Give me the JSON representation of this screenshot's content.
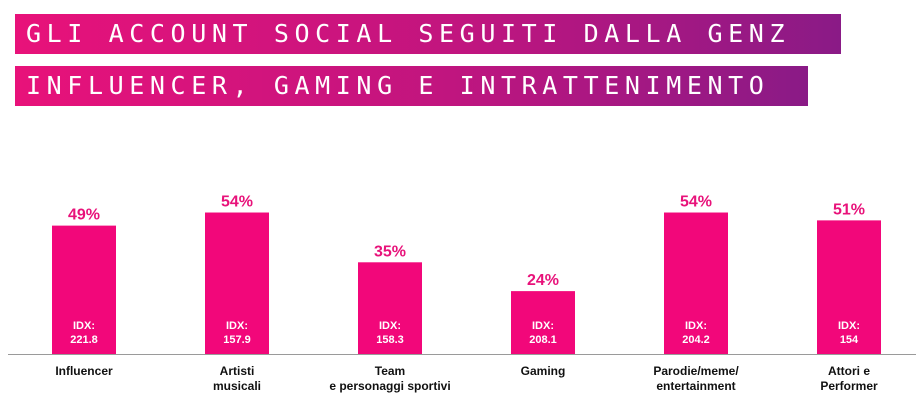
{
  "header": {
    "title_line1": "GLI ACCOUNT SOCIAL SEGUITI DALLA GENZ",
    "title_line2": "INFLUENCER, GAMING E INTRATTENIMENTO"
  },
  "colors": {
    "bar": "#f2077a",
    "accent": "#e8127a",
    "gradient_end": "#8a1a86"
  },
  "chart_data": {
    "type": "bar",
    "categories": [
      [
        "Influencer"
      ],
      [
        "Artisti",
        "musicali"
      ],
      [
        "Team",
        "e personaggi sportivi"
      ],
      [
        "Gaming"
      ],
      [
        "Parodie/meme/",
        "entertainment"
      ],
      [
        "Attori e",
        "Performer"
      ]
    ],
    "values": [
      49,
      54,
      35,
      24,
      54,
      51
    ],
    "value_labels": [
      "49%",
      "54%",
      "35%",
      "24%",
      "54%",
      "51%"
    ],
    "idx_label": "IDX:",
    "idx_values": [
      "221.8",
      "157.9",
      "158.3",
      "208.1",
      "204.2",
      "154"
    ],
    "ylim": [
      0,
      100
    ],
    "grid": false,
    "legend": "none"
  }
}
